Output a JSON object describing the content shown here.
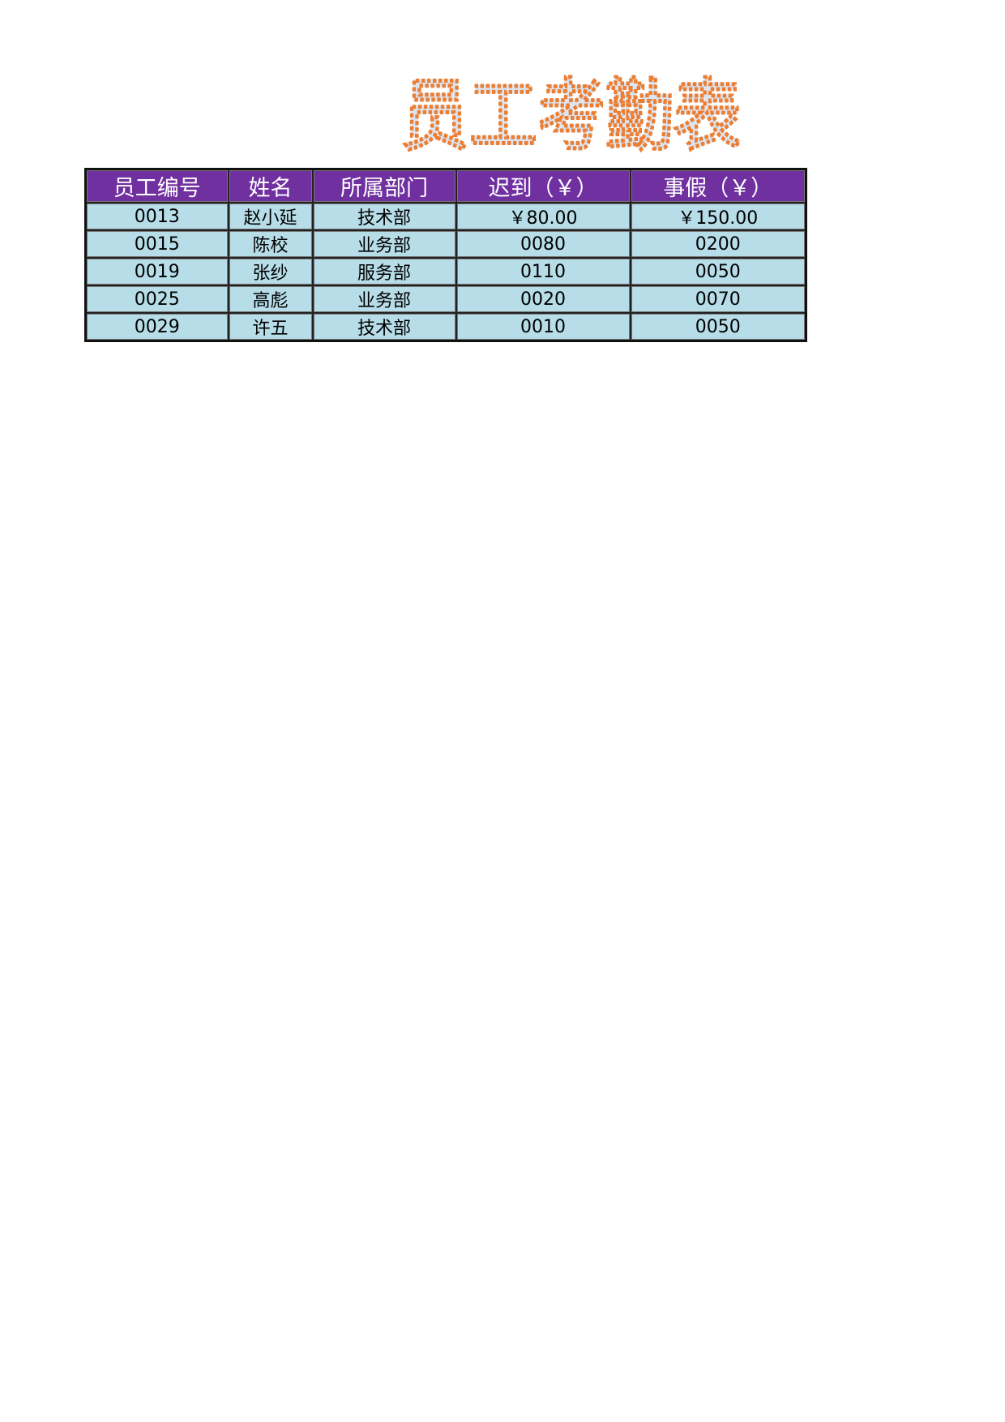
{
  "title": "员工考勤表",
  "colors": {
    "header_bg": "#7030a0",
    "cell_bg": "#b7dde8",
    "title_fill": "#dce6f2",
    "title_outline": "#ed7d31"
  },
  "table": {
    "headers": [
      "员工编号",
      "姓名",
      "所属部门",
      "迟到（￥）",
      "事假（￥）"
    ],
    "rows": [
      [
        "0013",
        "赵小延",
        "技术部",
        "￥80.00",
        "￥150.00"
      ],
      [
        "0015",
        "陈校",
        "业务部",
        "0080",
        "0200"
      ],
      [
        "0019",
        "张纱",
        "服务部",
        "0110",
        "0050"
      ],
      [
        "0025",
        "高彪",
        "业务部",
        "0020",
        "0070"
      ],
      [
        "0029",
        "许五",
        "技术部",
        "0010",
        "0050"
      ]
    ]
  }
}
